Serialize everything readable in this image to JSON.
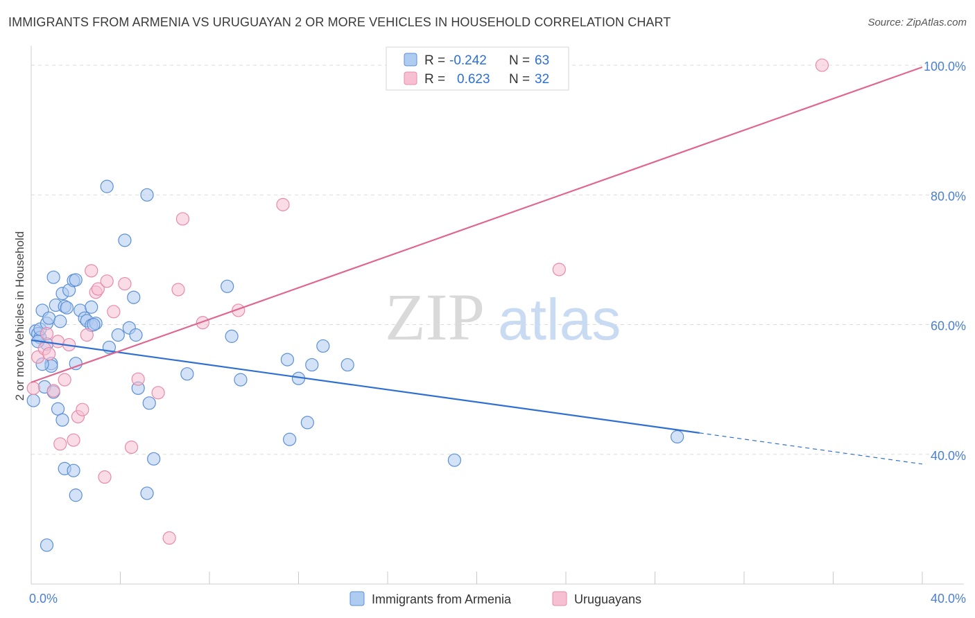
{
  "title": "IMMIGRANTS FROM ARMENIA VS URUGUAYAN 2 OR MORE VEHICLES IN HOUSEHOLD CORRELATION CHART",
  "source": "Source: ZipAtlas.com",
  "watermark": {
    "zip": "ZIP",
    "atlas": "atlas"
  },
  "colors": {
    "blue_fill": "#aecbf0",
    "blue_stroke": "#5b8fd6",
    "blue_line": "#2f6fd2",
    "pink_fill": "#f6c0d2",
    "pink_stroke": "#e88aa8",
    "pink_line": "#e0668f",
    "grid": "#dcdcdc",
    "tick_label": "#4a7fd1"
  },
  "legend": {
    "rows": [
      {
        "r_label": "R =",
        "r_value": "-0.242",
        "n_label": "N =",
        "n_value": "63"
      },
      {
        "r_label": "R =",
        "r_value": "0.623",
        "n_label": "N =",
        "n_value": "32"
      }
    ]
  },
  "chart_data": {
    "type": "scatter",
    "title": "IMMIGRANTS FROM ARMENIA VS URUGUAYAN 2 OR MORE VEHICLES IN HOUSEHOLD CORRELATION CHART",
    "xlabel": "",
    "ylabel": "2 or more Vehicles in Household",
    "xlim": [
      0,
      40
    ],
    "ylim": [
      20,
      103
    ],
    "x_tick_labels": [
      {
        "value": 0,
        "label": "0.0%"
      },
      {
        "value": 40,
        "label": "40.0%"
      }
    ],
    "y_tick_labels": [
      {
        "value": 40,
        "label": "40.0%"
      },
      {
        "value": 60,
        "label": "60.0%"
      },
      {
        "value": 80,
        "label": "80.0%"
      },
      {
        "value": 100,
        "label": "100.0%"
      }
    ],
    "grid": true,
    "legend_position": "top-center",
    "series": [
      {
        "name": "Immigrants from Armenia",
        "color": "#5b8fd6",
        "points": [
          [
            0.1,
            48.3
          ],
          [
            0.2,
            59.0
          ],
          [
            0.3,
            58.6
          ],
          [
            0.4,
            58.0
          ],
          [
            0.4,
            59.3
          ],
          [
            0.5,
            62.2
          ],
          [
            0.6,
            50.4
          ],
          [
            0.7,
            57.0
          ],
          [
            0.7,
            60.2
          ],
          [
            0.8,
            61.0
          ],
          [
            0.9,
            54.0
          ],
          [
            0.9,
            53.6
          ],
          [
            1.0,
            67.3
          ],
          [
            1.0,
            49.6
          ],
          [
            1.1,
            63.0
          ],
          [
            1.2,
            47.0
          ],
          [
            1.3,
            60.5
          ],
          [
            1.4,
            45.3
          ],
          [
            1.4,
            64.8
          ],
          [
            1.5,
            62.8
          ],
          [
            1.5,
            37.8
          ],
          [
            1.7,
            65.3
          ],
          [
            1.9,
            66.8
          ],
          [
            1.9,
            37.5
          ],
          [
            2.0,
            66.9
          ],
          [
            2.0,
            33.7
          ],
          [
            2.0,
            54.0
          ],
          [
            2.2,
            62.2
          ],
          [
            2.4,
            61.0
          ],
          [
            2.5,
            60.6
          ],
          [
            2.7,
            59.9
          ],
          [
            2.7,
            62.7
          ],
          [
            2.9,
            60.2
          ],
          [
            3.4,
            81.3
          ],
          [
            3.5,
            56.5
          ],
          [
            3.9,
            58.4
          ],
          [
            4.2,
            73.0
          ],
          [
            4.4,
            59.5
          ],
          [
            4.6,
            64.2
          ],
          [
            4.7,
            58.4
          ],
          [
            4.8,
            50.2
          ],
          [
            5.2,
            80.0
          ],
          [
            5.3,
            47.9
          ],
          [
            5.5,
            39.3
          ],
          [
            5.2,
            34.0
          ],
          [
            7.0,
            52.4
          ],
          [
            8.8,
            65.9
          ],
          [
            9.0,
            58.2
          ],
          [
            9.4,
            51.5
          ],
          [
            11.5,
            54.6
          ],
          [
            11.6,
            42.3
          ],
          [
            12.0,
            51.7
          ],
          [
            12.4,
            44.9
          ],
          [
            12.6,
            53.8
          ],
          [
            13.1,
            56.7
          ],
          [
            14.2,
            53.8
          ],
          [
            19.0,
            39.1
          ],
          [
            29.0,
            42.7
          ],
          [
            0.7,
            26.0
          ],
          [
            0.3,
            57.4
          ],
          [
            1.6,
            62.6
          ],
          [
            2.8,
            60.0
          ],
          [
            0.5,
            53.9
          ]
        ]
      },
      {
        "name": "Uruguayans",
        "color": "#e88aa8",
        "points": [
          [
            0.1,
            50.2
          ],
          [
            0.3,
            55.0
          ],
          [
            0.6,
            56.3
          ],
          [
            0.7,
            58.6
          ],
          [
            0.8,
            55.5
          ],
          [
            1.0,
            49.8
          ],
          [
            1.2,
            57.4
          ],
          [
            1.3,
            41.6
          ],
          [
            1.5,
            51.5
          ],
          [
            1.7,
            56.9
          ],
          [
            1.9,
            42.2
          ],
          [
            2.1,
            45.8
          ],
          [
            2.3,
            46.9
          ],
          [
            2.5,
            58.4
          ],
          [
            2.7,
            68.3
          ],
          [
            2.9,
            65.0
          ],
          [
            3.0,
            65.5
          ],
          [
            3.3,
            36.5
          ],
          [
            3.4,
            66.7
          ],
          [
            3.7,
            62.0
          ],
          [
            4.2,
            66.3
          ],
          [
            4.5,
            41.1
          ],
          [
            4.8,
            51.6
          ],
          [
            5.7,
            49.5
          ],
          [
            6.2,
            27.1
          ],
          [
            6.6,
            65.4
          ],
          [
            6.8,
            76.3
          ],
          [
            7.7,
            60.3
          ],
          [
            9.3,
            62.2
          ],
          [
            11.3,
            78.5
          ],
          [
            23.7,
            68.5
          ],
          [
            35.5,
            100.0
          ]
        ]
      }
    ],
    "trendlines": [
      {
        "series": "Immigrants from Armenia",
        "from": [
          0,
          57.6
        ],
        "to": [
          30,
          43.3
        ],
        "dashed_to": [
          40,
          38.5
        ]
      },
      {
        "series": "Uruguayans",
        "from": [
          0,
          51.1
        ],
        "to": [
          40,
          99.7
        ]
      }
    ]
  },
  "bottom_legend": [
    {
      "label": "Immigrants from Armenia"
    },
    {
      "label": "Uruguayans"
    }
  ]
}
